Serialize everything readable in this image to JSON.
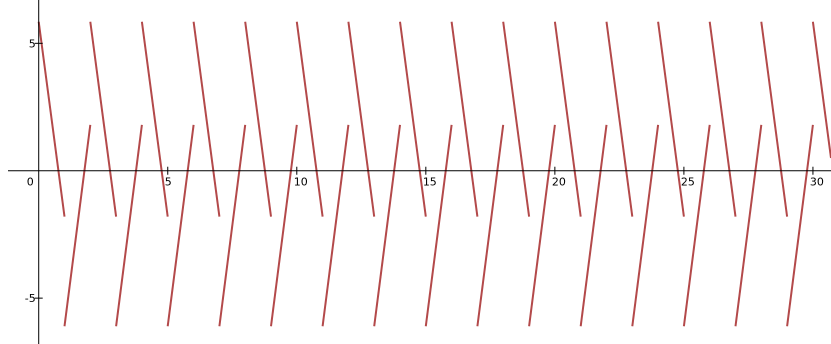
{
  "chart_data": {
    "type": "line",
    "title": "",
    "xlabel": "",
    "ylabel": "",
    "xlim": [
      -1.5,
      30.7
    ],
    "ylim": [
      -6.8,
      6.7
    ],
    "grid": false,
    "line_color": "#b3494a",
    "x_ticks": [
      {
        "value": 0,
        "label": "0"
      },
      {
        "value": 5,
        "label": "5"
      },
      {
        "value": 10,
        "label": "10"
      },
      {
        "value": 15,
        "label": "15"
      },
      {
        "value": 20,
        "label": "20"
      },
      {
        "value": 25,
        "label": "25"
      },
      {
        "value": 30,
        "label": "30"
      }
    ],
    "y_ticks": [
      {
        "value": 5,
        "label": "5"
      },
      {
        "value": -5,
        "label": "-5"
      }
    ],
    "series": [
      {
        "description": "descending sawtooth segments",
        "segments": [
          [
            [
              0.0,
              5.85
            ],
            [
              1.0,
              -1.8
            ]
          ],
          [
            [
              2.0,
              5.85
            ],
            [
              3.0,
              -1.8
            ]
          ],
          [
            [
              4.0,
              5.85
            ],
            [
              5.0,
              -1.8
            ]
          ],
          [
            [
              6.0,
              5.85
            ],
            [
              7.0,
              -1.8
            ]
          ],
          [
            [
              8.0,
              5.85
            ],
            [
              9.0,
              -1.8
            ]
          ],
          [
            [
              10.0,
              5.85
            ],
            [
              11.0,
              -1.8
            ]
          ],
          [
            [
              12.0,
              5.85
            ],
            [
              13.0,
              -1.8
            ]
          ],
          [
            [
              14.0,
              5.85
            ],
            [
              15.0,
              -1.8
            ]
          ],
          [
            [
              16.0,
              5.85
            ],
            [
              17.0,
              -1.8
            ]
          ],
          [
            [
              18.0,
              5.85
            ],
            [
              19.0,
              -1.8
            ]
          ],
          [
            [
              20.0,
              5.85
            ],
            [
              21.0,
              -1.8
            ]
          ],
          [
            [
              22.0,
              5.85
            ],
            [
              23.0,
              -1.8
            ]
          ],
          [
            [
              24.0,
              5.85
            ],
            [
              25.0,
              -1.8
            ]
          ],
          [
            [
              26.0,
              5.85
            ],
            [
              27.0,
              -1.8
            ]
          ],
          [
            [
              28.0,
              5.85
            ],
            [
              29.0,
              -1.8
            ]
          ],
          [
            [
              30.0,
              5.85
            ],
            [
              30.7,
              0.5
            ]
          ]
        ]
      },
      {
        "description": "ascending sawtooth segments",
        "segments": [
          [
            [
              1.0,
              -6.1
            ],
            [
              2.0,
              1.8
            ]
          ],
          [
            [
              3.0,
              -6.1
            ],
            [
              4.0,
              1.8
            ]
          ],
          [
            [
              5.0,
              -6.1
            ],
            [
              6.0,
              1.8
            ]
          ],
          [
            [
              7.0,
              -6.1
            ],
            [
              8.0,
              1.8
            ]
          ],
          [
            [
              9.0,
              -6.1
            ],
            [
              10.0,
              1.8
            ]
          ],
          [
            [
              11.0,
              -6.1
            ],
            [
              12.0,
              1.8
            ]
          ],
          [
            [
              13.0,
              -6.1
            ],
            [
              14.0,
              1.8
            ]
          ],
          [
            [
              15.0,
              -6.1
            ],
            [
              16.0,
              1.8
            ]
          ],
          [
            [
              17.0,
              -6.1
            ],
            [
              18.0,
              1.8
            ]
          ],
          [
            [
              19.0,
              -6.1
            ],
            [
              20.0,
              1.8
            ]
          ],
          [
            [
              21.0,
              -6.1
            ],
            [
              22.0,
              1.8
            ]
          ],
          [
            [
              23.0,
              -6.1
            ],
            [
              24.0,
              1.8
            ]
          ],
          [
            [
              25.0,
              -6.1
            ],
            [
              26.0,
              1.8
            ]
          ],
          [
            [
              27.0,
              -6.1
            ],
            [
              28.0,
              1.8
            ]
          ],
          [
            [
              29.0,
              -6.1
            ],
            [
              30.0,
              1.8
            ]
          ]
        ]
      }
    ]
  }
}
